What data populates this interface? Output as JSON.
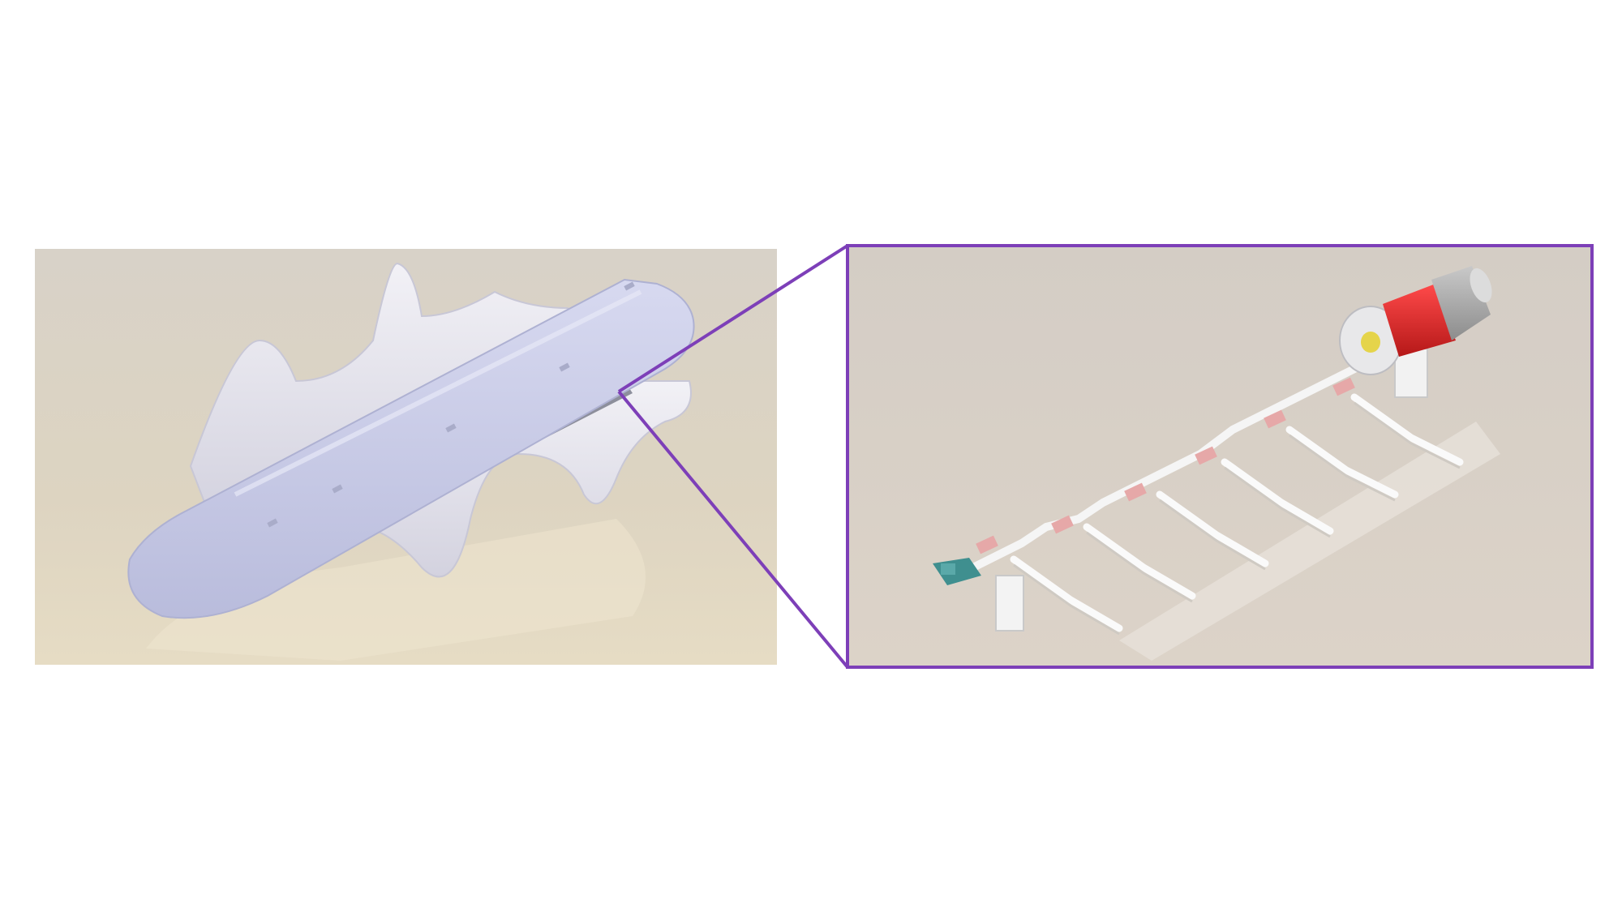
{
  "figure": {
    "left_panel": {
      "subject": "robot-body-render",
      "background_color": "#dcd4c6",
      "body_color": "#c9cbe6"
    },
    "right_panel": {
      "subject": "internal-mechanism-render",
      "frame_color": "#7d3fb8",
      "background_color": "#d6cfc6",
      "motor_color": "#e02a2a",
      "motor_housing_color": "#a8a8a8",
      "connector_color": "#e6a8a8",
      "end_mount_color": "#3f8f8f"
    },
    "callout_color": "#7d3fb8"
  }
}
